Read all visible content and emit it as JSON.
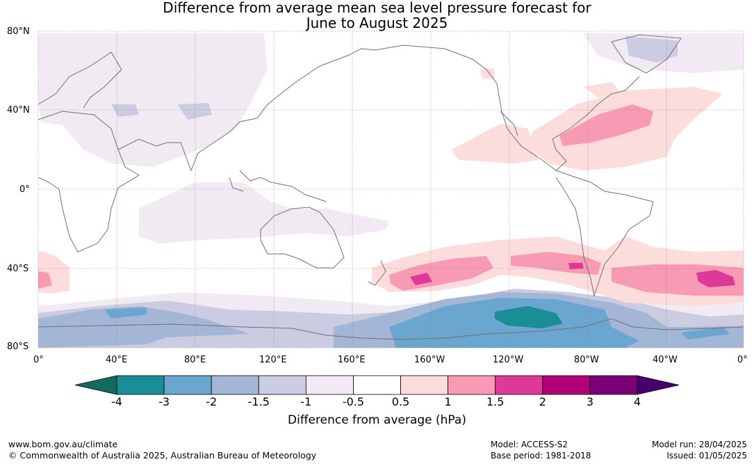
{
  "header": {
    "title_line1": "Difference from average mean sea level pressure forecast for",
    "title_line2": "June to August 2025"
  },
  "axes": {
    "lat_labels": [
      "80°N",
      "40°N",
      "0°",
      "40°S",
      "80°S"
    ],
    "lon_labels": [
      "0°",
      "40°E",
      "80°E",
      "120°E",
      "160°E",
      "160°W",
      "120°W",
      "80°W",
      "40°W",
      "0°"
    ]
  },
  "legend": {
    "boundaries": [
      "-4",
      "-3",
      "-2",
      "-1.5",
      "-1",
      "-0.5",
      "0.5",
      "1",
      "1.5",
      "2",
      "3",
      "4"
    ],
    "colors": [
      "#136b60",
      "#1b8d96",
      "#6aa6cf",
      "#a3b6d6",
      "#cbcce2",
      "#f2eaf3",
      "#ffffff",
      "#fddcdc",
      "#f89ab4",
      "#de3999",
      "#b20077",
      "#7a0078",
      "#47006b"
    ],
    "units_label": "Difference from average (hPa)"
  },
  "footer": {
    "url": "www.bom.gov.au/climate",
    "copyright": "© Commonwealth of Australia 2025, Australian Bureau of Meteorology",
    "model": "Model: ACCESS-S2",
    "base_period": "Base period: 1981-2018",
    "model_run": "Model run: 28/04/2025",
    "issued": "Issued: 01/05/2025"
  }
}
